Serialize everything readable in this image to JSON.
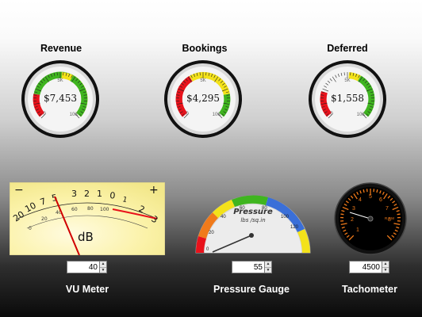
{
  "dials": [
    {
      "title": "Revenue",
      "value": "$7,453",
      "mid_label": "5K",
      "min_label": "0",
      "max_label": "10K",
      "level": 0.745
    },
    {
      "title": "Bookings",
      "value": "$4,295",
      "mid_label": "5K",
      "min_label": "0",
      "max_label": "10K",
      "level": 0.43
    },
    {
      "title": "Deferred",
      "value": "$1,558",
      "mid_label": "5K",
      "min_label": "0",
      "max_label": "10K",
      "level": 0.156
    }
  ],
  "vu_meter": {
    "label": "VU Meter",
    "unit": "dB",
    "minus_sign": "−",
    "plus_sign": "+",
    "scale_labels": [
      "20",
      "10",
      "7",
      "5",
      "3",
      "2",
      "1",
      "0",
      "1",
      "2",
      "3"
    ],
    "percent_labels": [
      "0",
      "20",
      "40",
      "60",
      "80",
      "100"
    ],
    "input_value": "40"
  },
  "pressure": {
    "label": "Pressure Gauge",
    "title": "Pressure",
    "subtitle": "lbs /sq.in",
    "tick_labels": [
      "0",
      "20",
      "40",
      "60",
      "80",
      "100",
      "120"
    ],
    "input_value": "55"
  },
  "tacho": {
    "label": "Tachometer",
    "readout": "R.P.M",
    "input_value": "4500"
  },
  "colors": {
    "red": "#e8121b",
    "yellow": "#f3e21a",
    "green": "#3fb51f",
    "orange": "#f07a1a",
    "blue": "#3a6fd8"
  }
}
